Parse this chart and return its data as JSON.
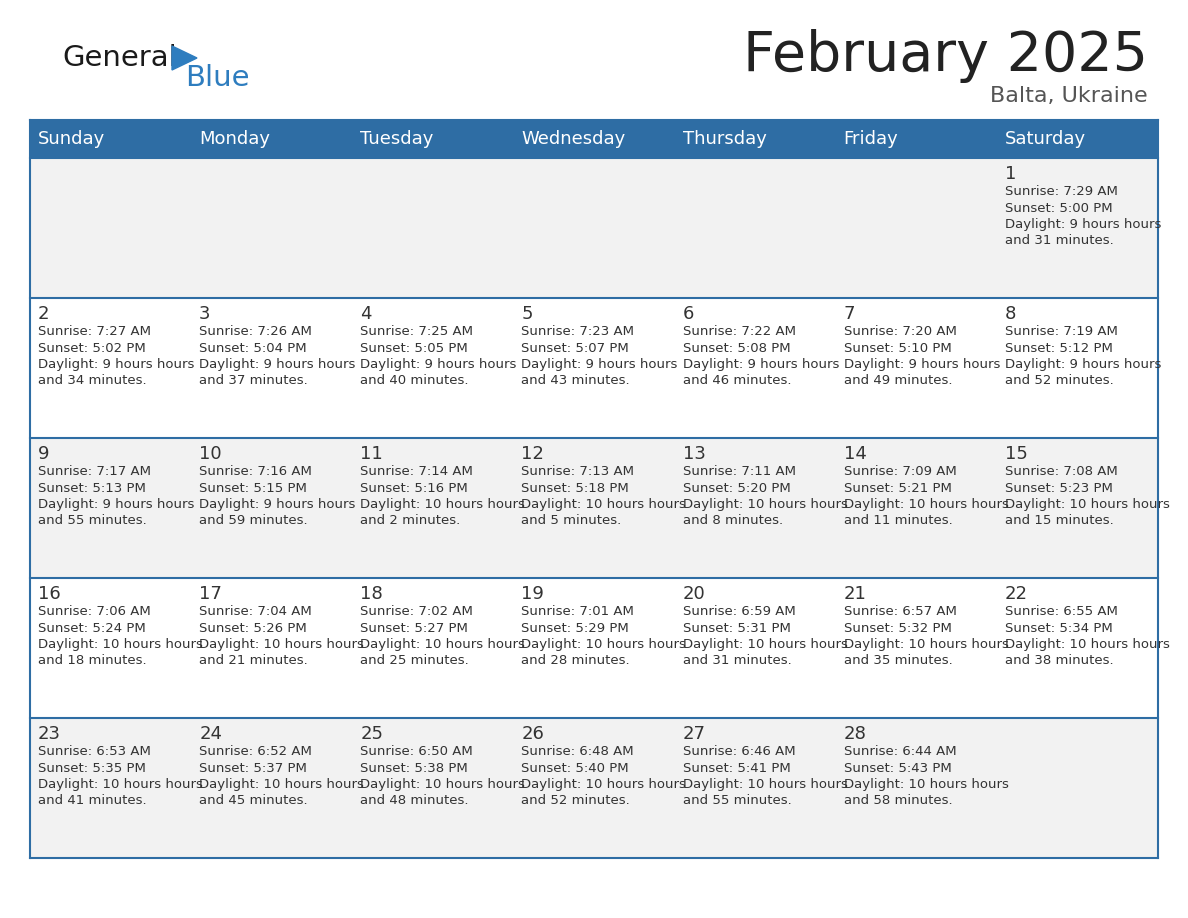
{
  "title": "February 2025",
  "subtitle": "Balta, Ukraine",
  "days_of_week": [
    "Sunday",
    "Monday",
    "Tuesday",
    "Wednesday",
    "Thursday",
    "Friday",
    "Saturday"
  ],
  "header_bg": "#2E6DA4",
  "header_text_color": "#FFFFFF",
  "row_bg_odd": "#F2F2F2",
  "row_bg_even": "#FFFFFF",
  "border_color": "#2E6DA4",
  "text_color": "#333333",
  "day_num_color": "#333333",
  "title_color": "#222222",
  "subtitle_color": "#555555",
  "logo_general_color": "#1A1A1A",
  "logo_blue_color": "#2E7DBF",
  "calendar_data": [
    [
      null,
      null,
      null,
      null,
      null,
      null,
      {
        "day": 1,
        "sunrise": "7:29 AM",
        "sunset": "5:00 PM",
        "daylight": "9 hours and 31 minutes."
      }
    ],
    [
      {
        "day": 2,
        "sunrise": "7:27 AM",
        "sunset": "5:02 PM",
        "daylight": "9 hours and 34 minutes."
      },
      {
        "day": 3,
        "sunrise": "7:26 AM",
        "sunset": "5:04 PM",
        "daylight": "9 hours and 37 minutes."
      },
      {
        "day": 4,
        "sunrise": "7:25 AM",
        "sunset": "5:05 PM",
        "daylight": "9 hours and 40 minutes."
      },
      {
        "day": 5,
        "sunrise": "7:23 AM",
        "sunset": "5:07 PM",
        "daylight": "9 hours and 43 minutes."
      },
      {
        "day": 6,
        "sunrise": "7:22 AM",
        "sunset": "5:08 PM",
        "daylight": "9 hours and 46 minutes."
      },
      {
        "day": 7,
        "sunrise": "7:20 AM",
        "sunset": "5:10 PM",
        "daylight": "9 hours and 49 minutes."
      },
      {
        "day": 8,
        "sunrise": "7:19 AM",
        "sunset": "5:12 PM",
        "daylight": "9 hours and 52 minutes."
      }
    ],
    [
      {
        "day": 9,
        "sunrise": "7:17 AM",
        "sunset": "5:13 PM",
        "daylight": "9 hours and 55 minutes."
      },
      {
        "day": 10,
        "sunrise": "7:16 AM",
        "sunset": "5:15 PM",
        "daylight": "9 hours and 59 minutes."
      },
      {
        "day": 11,
        "sunrise": "7:14 AM",
        "sunset": "5:16 PM",
        "daylight": "10 hours and 2 minutes."
      },
      {
        "day": 12,
        "sunrise": "7:13 AM",
        "sunset": "5:18 PM",
        "daylight": "10 hours and 5 minutes."
      },
      {
        "day": 13,
        "sunrise": "7:11 AM",
        "sunset": "5:20 PM",
        "daylight": "10 hours and 8 minutes."
      },
      {
        "day": 14,
        "sunrise": "7:09 AM",
        "sunset": "5:21 PM",
        "daylight": "10 hours and 11 minutes."
      },
      {
        "day": 15,
        "sunrise": "7:08 AM",
        "sunset": "5:23 PM",
        "daylight": "10 hours and 15 minutes."
      }
    ],
    [
      {
        "day": 16,
        "sunrise": "7:06 AM",
        "sunset": "5:24 PM",
        "daylight": "10 hours and 18 minutes."
      },
      {
        "day": 17,
        "sunrise": "7:04 AM",
        "sunset": "5:26 PM",
        "daylight": "10 hours and 21 minutes."
      },
      {
        "day": 18,
        "sunrise": "7:02 AM",
        "sunset": "5:27 PM",
        "daylight": "10 hours and 25 minutes."
      },
      {
        "day": 19,
        "sunrise": "7:01 AM",
        "sunset": "5:29 PM",
        "daylight": "10 hours and 28 minutes."
      },
      {
        "day": 20,
        "sunrise": "6:59 AM",
        "sunset": "5:31 PM",
        "daylight": "10 hours and 31 minutes."
      },
      {
        "day": 21,
        "sunrise": "6:57 AM",
        "sunset": "5:32 PM",
        "daylight": "10 hours and 35 minutes."
      },
      {
        "day": 22,
        "sunrise": "6:55 AM",
        "sunset": "5:34 PM",
        "daylight": "10 hours and 38 minutes."
      }
    ],
    [
      {
        "day": 23,
        "sunrise": "6:53 AM",
        "sunset": "5:35 PM",
        "daylight": "10 hours and 41 minutes."
      },
      {
        "day": 24,
        "sunrise": "6:52 AM",
        "sunset": "5:37 PM",
        "daylight": "10 hours and 45 minutes."
      },
      {
        "day": 25,
        "sunrise": "6:50 AM",
        "sunset": "5:38 PM",
        "daylight": "10 hours and 48 minutes."
      },
      {
        "day": 26,
        "sunrise": "6:48 AM",
        "sunset": "5:40 PM",
        "daylight": "10 hours and 52 minutes."
      },
      {
        "day": 27,
        "sunrise": "6:46 AM",
        "sunset": "5:41 PM",
        "daylight": "10 hours and 55 minutes."
      },
      {
        "day": 28,
        "sunrise": "6:44 AM",
        "sunset": "5:43 PM",
        "daylight": "10 hours and 58 minutes."
      },
      null
    ]
  ],
  "figsize": [
    11.88,
    9.18
  ],
  "dpi": 100
}
